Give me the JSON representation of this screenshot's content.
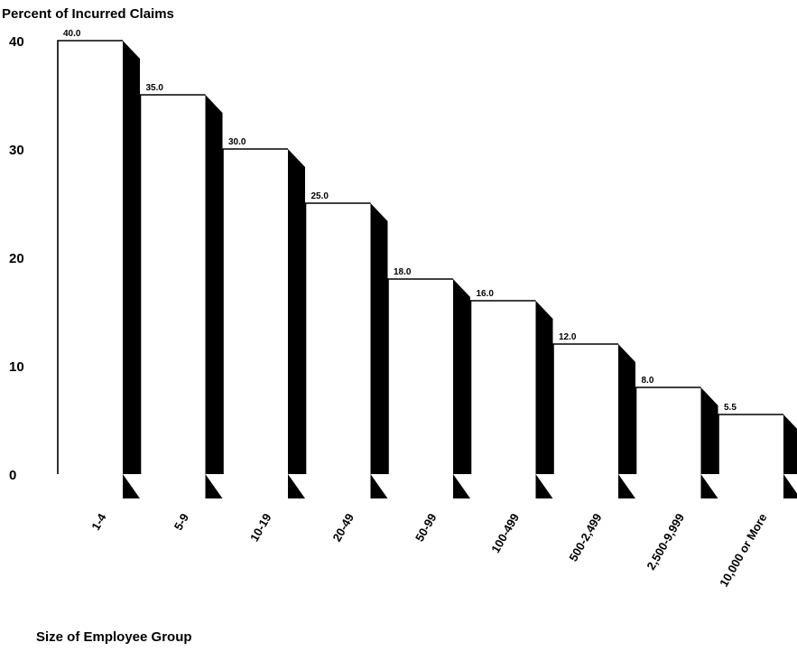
{
  "chart_data": {
    "type": "bar",
    "title": "",
    "ylabel": "Percent of Incurred Claims",
    "xlabel": "Size of Employee Group",
    "categories": [
      "1-4",
      "5-9",
      "10-19",
      "20-49",
      "50-99",
      "100-499",
      "500-2,499",
      "2,500-9,999",
      "10,000 or More"
    ],
    "values": [
      40.0,
      35.0,
      30.0,
      25.0,
      18.0,
      16.0,
      12.0,
      8.0,
      5.5
    ],
    "data_labels": [
      "40.0",
      "35.0",
      "30.0",
      "25.0",
      "18.0",
      "16.0",
      "12.0",
      "8.0",
      "5.5"
    ],
    "yticks": [
      0,
      10,
      20,
      30,
      40
    ],
    "ylim": [
      0,
      40
    ],
    "grid": false,
    "legend": "none",
    "colors": {
      "bar_face": "#ffffff",
      "bar_side": "#000000",
      "outline": "#000000"
    }
  }
}
